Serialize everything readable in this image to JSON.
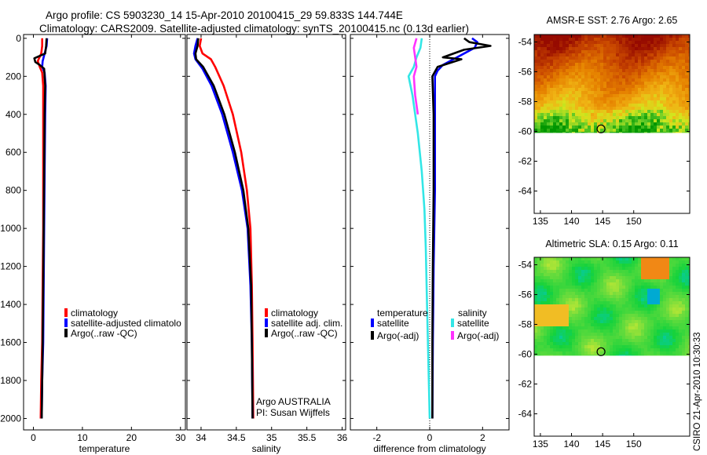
{
  "title": {
    "line1": "Argo profile: CS 5903230_14 15-Apr-2010 20100415_29 59.833S 144.744E",
    "line2": "Climatology: CARS2009. Satellite-adjusted climatology: synTS_20100415.nc (0.13d earlier)"
  },
  "stamp": "CSIRO 21-Apr-2010 10:30:33",
  "colors": {
    "climatology": "#ff0000",
    "satellite": "#0000ff",
    "argo": "#000000",
    "sat_salinity": "#33e6e6",
    "argo_adj_salinity": "#ff33ff"
  },
  "chart_data": [
    {
      "type": "line",
      "xlabel": "temperature",
      "xlim": [
        -2,
        31
      ],
      "xticks": [
        0,
        10,
        20,
        30
      ],
      "ylim": [
        2060,
        -20
      ],
      "yticks": [
        0,
        200,
        400,
        600,
        800,
        1000,
        1200,
        1400,
        1600,
        1800,
        2000
      ],
      "legend": [
        "climatology",
        "satellite-adjusted climatolo",
        "Argo(..raw -QC)"
      ],
      "series": [
        {
          "name": "climatology",
          "color": "#ff0000",
          "points": [
            [
              1.8,
              0
            ],
            [
              1.8,
              40
            ],
            [
              1.6,
              80
            ],
            [
              0.9,
              120
            ],
            [
              1.3,
              150
            ],
            [
              1.8,
              180
            ],
            [
              2.0,
              250
            ],
            [
              2.0,
              400
            ],
            [
              2.0,
              700
            ],
            [
              2.0,
              1000
            ],
            [
              1.9,
              1300
            ],
            [
              1.8,
              1600
            ],
            [
              1.6,
              1800
            ],
            [
              1.5,
              2000
            ]
          ]
        },
        {
          "name": "satellite-adjusted climatolo",
          "color": "#0000ff",
          "points": [
            [
              2.8,
              0
            ],
            [
              2.7,
              40
            ],
            [
              2.3,
              80
            ],
            [
              1.9,
              120
            ],
            [
              1.8,
              150
            ],
            [
              2.3,
              180
            ],
            [
              2.5,
              250
            ],
            [
              2.4,
              400
            ],
            [
              2.3,
              700
            ],
            [
              2.2,
              1000
            ],
            [
              2.1,
              1300
            ],
            [
              2.0,
              1600
            ],
            [
              1.8,
              1800
            ],
            [
              1.7,
              2000
            ]
          ]
        },
        {
          "name": "Argo(..raw -QC)",
          "color": "#000000",
          "points": [
            [
              2.7,
              0
            ],
            [
              2.6,
              40
            ],
            [
              2.4,
              80
            ],
            [
              0.2,
              105
            ],
            [
              0.4,
              125
            ],
            [
              1.3,
              140
            ],
            [
              2.2,
              160
            ],
            [
              2.4,
              250
            ],
            [
              2.3,
              400
            ],
            [
              2.2,
              700
            ],
            [
              2.1,
              1000
            ],
            [
              2.0,
              1300
            ],
            [
              1.9,
              1600
            ],
            [
              1.8,
              1800
            ],
            [
              1.7,
              2000
            ]
          ]
        }
      ]
    },
    {
      "type": "line",
      "xlabel": "salinity",
      "xlim": [
        33.8,
        36.05
      ],
      "xticks": [
        34,
        34.5,
        35,
        35.5,
        36
      ],
      "ylim": [
        2060,
        -20
      ],
      "yticks": [
        0,
        200,
        400,
        600,
        800,
        1000,
        1200,
        1400,
        1600,
        1800,
        2000
      ],
      "legend": [
        "climatology",
        "satellite adj. clim.",
        "Argo(..raw -QC)"
      ],
      "annotations": [
        "Argo AUSTRALIA",
        "PI: Susan Wijffels"
      ],
      "series": [
        {
          "name": "climatology",
          "color": "#ff0000",
          "points": [
            [
              34.0,
              0
            ],
            [
              33.98,
              40
            ],
            [
              34.02,
              80
            ],
            [
              34.14,
              110
            ],
            [
              34.2,
              150
            ],
            [
              34.32,
              250
            ],
            [
              34.45,
              400
            ],
            [
              34.57,
              600
            ],
            [
              34.65,
              800
            ],
            [
              34.7,
              1000
            ],
            [
              34.72,
              1300
            ],
            [
              34.73,
              1600
            ],
            [
              34.74,
              2000
            ]
          ]
        },
        {
          "name": "satellite adj. clim.",
          "color": "#0000ff",
          "points": [
            [
              33.95,
              0
            ],
            [
              33.92,
              40
            ],
            [
              33.9,
              80
            ],
            [
              33.92,
              110
            ],
            [
              34.02,
              160
            ],
            [
              34.15,
              250
            ],
            [
              34.3,
              400
            ],
            [
              34.45,
              600
            ],
            [
              34.58,
              800
            ],
            [
              34.66,
              1000
            ],
            [
              34.7,
              1300
            ],
            [
              34.72,
              1600
            ],
            [
              34.73,
              2000
            ]
          ]
        },
        {
          "name": "Argo(..raw -QC)",
          "color": "#000000",
          "points": [
            [
              33.96,
              0
            ],
            [
              33.95,
              40
            ],
            [
              33.92,
              80
            ],
            [
              33.93,
              110
            ],
            [
              34.03,
              150
            ],
            [
              34.18,
              250
            ],
            [
              34.33,
              400
            ],
            [
              34.48,
              600
            ],
            [
              34.6,
              800
            ],
            [
              34.67,
              1000
            ],
            [
              34.71,
              1300
            ],
            [
              34.72,
              1600
            ],
            [
              34.73,
              2000
            ]
          ]
        }
      ]
    },
    {
      "type": "line",
      "xlabel": "difference from climatology",
      "xlim": [
        -3,
        3
      ],
      "xticks": [
        -2,
        0,
        2
      ],
      "ylim": [
        2060,
        -20
      ],
      "yticks": [
        0,
        200,
        400,
        600,
        800,
        1000,
        1200,
        1400,
        1600,
        1800,
        2000
      ],
      "legend": {
        "temperature_heading": "temperature",
        "salinity_heading": "salinity",
        "temperature": [
          "satellite",
          "Argo(-adj)"
        ],
        "salinity": [
          "satellite",
          "Argo(-adj)"
        ]
      },
      "series": [
        {
          "name": "satellite",
          "group": "temperature",
          "color": "#0000ff",
          "points": [
            [
              1.6,
              0
            ],
            [
              1.8,
              20
            ],
            [
              1.7,
              50
            ],
            [
              1.3,
              80
            ],
            [
              0.9,
              110
            ],
            [
              0.5,
              140
            ],
            [
              0.3,
              170
            ],
            [
              0.2,
              200
            ],
            [
              0.2,
              400
            ],
            [
              0.2,
              800
            ],
            [
              0.15,
              1200
            ],
            [
              0.12,
              1600
            ],
            [
              0.1,
              2000
            ]
          ]
        },
        {
          "name": "Argo(-adj)",
          "group": "temperature",
          "color": "#000000",
          "points": [
            [
              1.3,
              0
            ],
            [
              1.5,
              20
            ],
            [
              2.3,
              40
            ],
            [
              1.3,
              60
            ],
            [
              0.5,
              100
            ],
            [
              1.2,
              110
            ],
            [
              0.3,
              150
            ],
            [
              0.1,
              200
            ],
            [
              0.15,
              400
            ],
            [
              0.15,
              800
            ],
            [
              0.12,
              1200
            ],
            [
              0.1,
              1600
            ],
            [
              0.1,
              2000
            ]
          ]
        },
        {
          "name": "satellite",
          "group": "salinity",
          "color": "#33e6e6",
          "points": [
            [
              -0.3,
              0
            ],
            [
              -0.35,
              50
            ],
            [
              -0.5,
              100
            ],
            [
              -0.6,
              150
            ],
            [
              -0.8,
              200
            ],
            [
              -0.65,
              300
            ],
            [
              -0.45,
              500
            ],
            [
              -0.3,
              700
            ],
            [
              -0.2,
              900
            ],
            [
              -0.15,
              1100
            ],
            [
              -0.1,
              1400
            ],
            [
              -0.05,
              1700
            ],
            [
              0.0,
              2000
            ]
          ]
        },
        {
          "name": "Argo(-adj)",
          "group": "salinity",
          "color": "#ff33ff",
          "points": [
            [
              -0.5,
              0
            ],
            [
              -0.6,
              50
            ],
            [
              -0.55,
              100
            ],
            [
              -0.5,
              150
            ],
            [
              -0.6,
              200
            ],
            [
              -0.55,
              300
            ],
            [
              -0.45,
              400
            ]
          ]
        }
      ]
    },
    {
      "type": "heatmap",
      "title": "AMSR-E SST: 2.76 Argo: 2.65",
      "xlim": [
        134,
        159
      ],
      "xticks": [
        135,
        140,
        145,
        150
      ],
      "ylim": [
        -65.5,
        -53.5
      ],
      "yticks": [
        -54,
        -56,
        -58,
        -60,
        -62,
        -64
      ],
      "data_extent_lat": [
        -60.1,
        -53.5
      ],
      "marker": {
        "lon": 144.744,
        "lat": -59.833
      }
    },
    {
      "type": "heatmap",
      "title": "Altimetric SLA: 0.15 Argo: 0.11",
      "xlim": [
        134,
        159
      ],
      "xticks": [
        135,
        140,
        145,
        150
      ],
      "ylim": [
        -65.5,
        -53.5
      ],
      "yticks": [
        -54,
        -56,
        -58,
        -60,
        -62,
        -64
      ],
      "data_extent_lat": [
        -60.1,
        -53.5
      ],
      "marker": {
        "lon": 144.744,
        "lat": -59.833
      }
    }
  ]
}
